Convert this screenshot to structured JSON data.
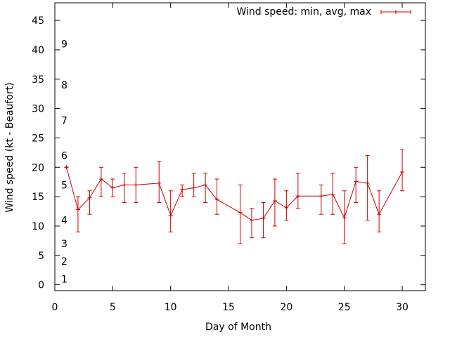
{
  "chart_data": {
    "type": "line",
    "title": "",
    "xlabel": "Day of Month",
    "ylabel": "Wind speed (kt - Beaufort)",
    "xlim": [
      0,
      32
    ],
    "ylim": [
      -1,
      48
    ],
    "x_ticks": [
      0,
      5,
      10,
      15,
      20,
      25,
      30
    ],
    "y_ticks": [
      0,
      5,
      10,
      15,
      20,
      25,
      30,
      35,
      40,
      45
    ],
    "grid": false,
    "legend_position": "top-right",
    "beaufort_labels": [
      {
        "label": "1",
        "value": 1
      },
      {
        "label": "2",
        "value": 4
      },
      {
        "label": "3",
        "value": 7
      },
      {
        "label": "4",
        "value": 11
      },
      {
        "label": "5",
        "value": 17
      },
      {
        "label": "6",
        "value": 22
      },
      {
        "label": "7",
        "value": 28
      },
      {
        "label": "8",
        "value": 34
      },
      {
        "label": "9",
        "value": 41
      }
    ],
    "series": [
      {
        "name": "Wind speed: min, avg, max",
        "color": "#cc0000",
        "points": [
          {
            "x": 1,
            "y": 20,
            "ymin": 20,
            "ymax": 20
          },
          {
            "x": 2,
            "y": 12.8,
            "ymin": 9,
            "ymax": 15
          },
          {
            "x": 3,
            "y": 14.8,
            "ymin": 12,
            "ymax": 16
          },
          {
            "x": 4,
            "y": 18,
            "ymin": 15,
            "ymax": 20
          },
          {
            "x": 5,
            "y": 16.5,
            "ymin": 15,
            "ymax": 18
          },
          {
            "x": 6,
            "y": 17,
            "ymin": 14,
            "ymax": 19
          },
          {
            "x": 7,
            "y": 17,
            "ymin": 14,
            "ymax": 20
          },
          {
            "x": 9,
            "y": 17.3,
            "ymin": 14,
            "ymax": 21
          },
          {
            "x": 10,
            "y": 11.8,
            "ymin": 9,
            "ymax": 16
          },
          {
            "x": 11,
            "y": 16.2,
            "ymin": 15,
            "ymax": 17
          },
          {
            "x": 12,
            "y": 16.5,
            "ymin": 15,
            "ymax": 19
          },
          {
            "x": 13,
            "y": 17,
            "ymin": 14,
            "ymax": 19
          },
          {
            "x": 14,
            "y": 14.5,
            "ymin": 12,
            "ymax": 18
          },
          {
            "x": 16,
            "y": 12.3,
            "ymin": 7,
            "ymax": 17
          },
          {
            "x": 17,
            "y": 11,
            "ymin": 8,
            "ymax": 13
          },
          {
            "x": 18,
            "y": 11.3,
            "ymin": 8,
            "ymax": 14
          },
          {
            "x": 19,
            "y": 14.3,
            "ymin": 10,
            "ymax": 18
          },
          {
            "x": 20,
            "y": 13.1,
            "ymin": 11,
            "ymax": 16
          },
          {
            "x": 21,
            "y": 15.1,
            "ymin": 13,
            "ymax": 19
          },
          {
            "x": 23,
            "y": 15.1,
            "ymin": 12,
            "ymax": 17
          },
          {
            "x": 24,
            "y": 15.4,
            "ymin": 12,
            "ymax": 19
          },
          {
            "x": 25,
            "y": 11.4,
            "ymin": 7,
            "ymax": 16
          },
          {
            "x": 26,
            "y": 17.6,
            "ymin": 14,
            "ymax": 20
          },
          {
            "x": 27,
            "y": 17.3,
            "ymin": 11,
            "ymax": 22
          },
          {
            "x": 28,
            "y": 12,
            "ymin": 9,
            "ymax": 16
          },
          {
            "x": 30,
            "y": 19.2,
            "ymin": 16,
            "ymax": 23
          }
        ]
      }
    ]
  }
}
